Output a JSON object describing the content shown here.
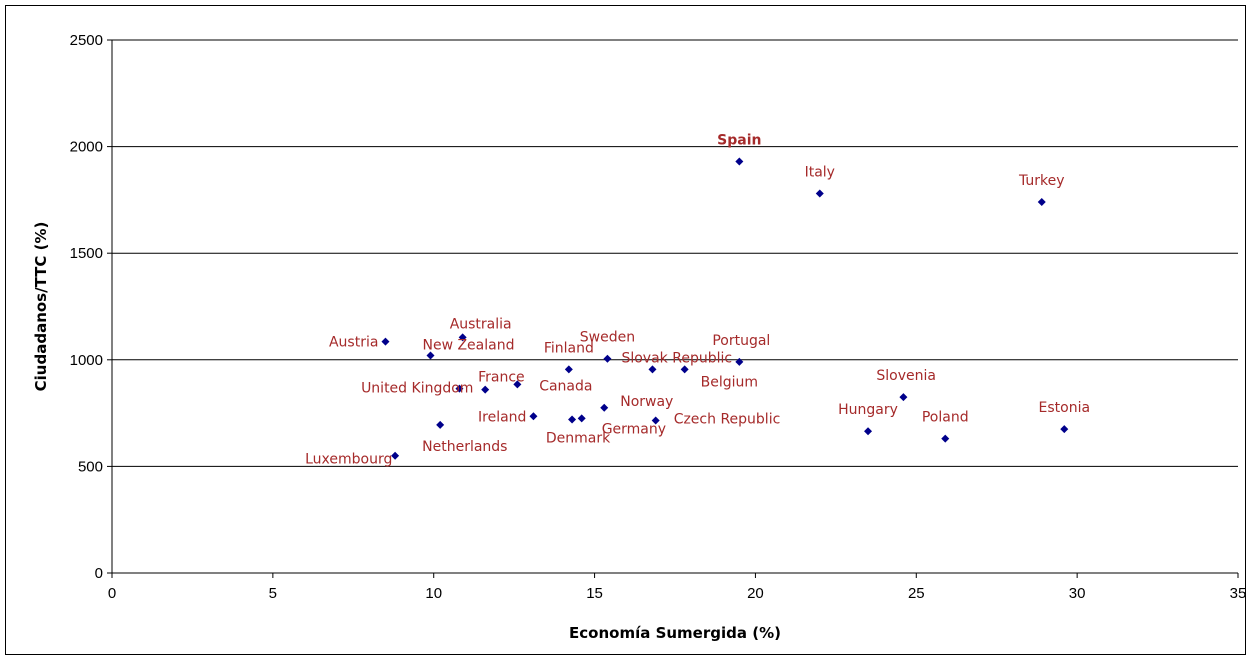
{
  "chart_data": {
    "type": "scatter",
    "xlabel": "Economía Sumergida (%)",
    "ylabel": "Ciudadanos/TTC (%)",
    "xlim": [
      0,
      35
    ],
    "ylim": [
      0,
      2500
    ],
    "xticks": [
      0,
      5,
      10,
      15,
      20,
      25,
      30,
      35
    ],
    "yticks": [
      0,
      500,
      1000,
      1500,
      2000,
      2500
    ],
    "grid": "horizontal",
    "legend": "none",
    "marker_color": "#00008B",
    "label_color": "#A52A2A",
    "series": [
      {
        "points": [
          {
            "label": "Spain",
            "x": 19.5,
            "y": 1930,
            "bold": true
          },
          {
            "label": "Italy",
            "x": 22.0,
            "y": 1780
          },
          {
            "label": "Turkey",
            "x": 28.9,
            "y": 1740
          },
          {
            "label": "Austria",
            "x": 8.5,
            "y": 1085
          },
          {
            "label": "Australia",
            "x": 10.9,
            "y": 1105
          },
          {
            "label": "New Zealand",
            "x": 9.9,
            "y": 1020
          },
          {
            "label": "Sweden",
            "x": 15.4,
            "y": 1005
          },
          {
            "label": "Portugal",
            "x": 19.5,
            "y": 990
          },
          {
            "label": "Finland",
            "x": 14.2,
            "y": 955
          },
          {
            "label": "Slovak Republic",
            "x": 16.8,
            "y": 955
          },
          {
            "label": "Belgium",
            "x": 17.8,
            "y": 955
          },
          {
            "label": "France",
            "x": 12.6,
            "y": 885
          },
          {
            "label": "United Kingdom",
            "x": 10.8,
            "y": 865
          },
          {
            "label": "Canada",
            "x": 11.6,
            "y": 860
          },
          {
            "label": "Slovenia",
            "x": 24.6,
            "y": 825
          },
          {
            "label": "Norway",
            "x": 15.3,
            "y": 775
          },
          {
            "label": "Ireland",
            "x": 13.1,
            "y": 735
          },
          {
            "label": "Denmark",
            "x": 14.3,
            "y": 720
          },
          {
            "label": "Germany",
            "x": 14.6,
            "y": 725
          },
          {
            "label": "Czech Republic",
            "x": 16.9,
            "y": 715
          },
          {
            "label": "Netherlands",
            "x": 10.2,
            "y": 695
          },
          {
            "label": "Estonia",
            "x": 29.6,
            "y": 675
          },
          {
            "label": "Hungary",
            "x": 23.5,
            "y": 665
          },
          {
            "label": "Poland",
            "x": 25.9,
            "y": 630
          },
          {
            "label": "Luxembourg",
            "x": 8.8,
            "y": 550
          }
        ]
      }
    ]
  }
}
